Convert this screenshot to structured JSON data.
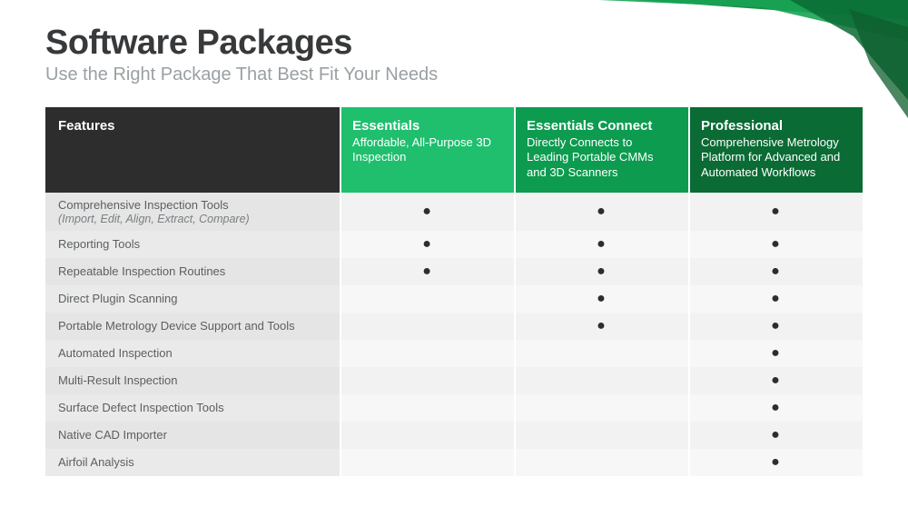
{
  "header": {
    "title": "Software Packages",
    "subtitle": "Use the Right Package That Best Fit Your Needs"
  },
  "decor": {
    "colors": {
      "green1": "#0d8a3e",
      "green2": "#1aa354",
      "green3": "#0a6b34",
      "green4": "#0e5d2e"
    }
  },
  "table": {
    "featuresHeader": "Features",
    "packages": [
      {
        "name": "Essentials",
        "desc": "Affordable, All-Purpose 3D Inspection",
        "bg": "#1fbf6e"
      },
      {
        "name": "Essentials Connect",
        "desc": "Directly Connects to Leading Portable CMMs and 3D Scanners",
        "bg": "#0d9b4f"
      },
      {
        "name": "Professional",
        "desc": "Comprehensive Metrology Platform for Advanced and Automated Workflows",
        "bg": "#0a6b34"
      }
    ],
    "rows": [
      {
        "label": "Comprehensive Inspection Tools",
        "sub": "(Import, Edit, Align, Extract, Compare)",
        "vals": [
          true,
          true,
          true
        ],
        "tall": true
      },
      {
        "label": "Reporting Tools",
        "vals": [
          true,
          true,
          true
        ]
      },
      {
        "label": "Repeatable Inspection Routines",
        "vals": [
          true,
          true,
          true
        ]
      },
      {
        "label": "Direct Plugin Scanning",
        "vals": [
          false,
          true,
          true
        ]
      },
      {
        "label": "Portable Metrology Device Support and Tools",
        "vals": [
          false,
          true,
          true
        ]
      },
      {
        "label": "Automated Inspection",
        "vals": [
          false,
          false,
          true
        ]
      },
      {
        "label": "Multi-Result Inspection",
        "vals": [
          false,
          false,
          true
        ]
      },
      {
        "label": "Surface Defect Inspection Tools",
        "vals": [
          false,
          false,
          true
        ]
      },
      {
        "label": "Native CAD Importer",
        "vals": [
          false,
          false,
          true
        ]
      },
      {
        "label": "Airfoil Analysis",
        "vals": [
          false,
          false,
          true
        ]
      }
    ],
    "dot": "●",
    "colors": {
      "featHeadBg": "#2d2d2d",
      "featCellBg": "#e5e5e5",
      "featCellBgAlt": "#eaeaea",
      "valCellBg": "#f2f2f2",
      "valCellBgAlt": "#f7f7f7",
      "textDark": "#37393b",
      "textGrey": "#9aa0a3"
    }
  }
}
